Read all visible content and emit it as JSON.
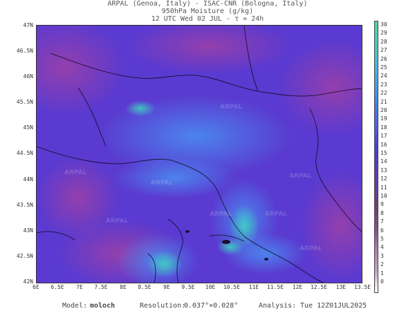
{
  "title": {
    "line1": "ARPAL (Genoa, Italy)  -  ISAC-CNR (Bologna, Italy)",
    "line2": "950hPa Moisture (g/kg)",
    "line3": "12 UTC Wed 02 JUL  -  τ = 24h"
  },
  "axes": {
    "lat_labels": [
      "47N",
      "46.5N",
      "46N",
      "45.5N",
      "45N",
      "44.5N",
      "44N",
      "43.5N",
      "43N",
      "42.5N",
      "42N"
    ],
    "lon_labels": [
      "6E",
      "6.5E",
      "7E",
      "7.5E",
      "8E",
      "8.5E",
      "9E",
      "9.5E",
      "10E",
      "10.5E",
      "11E",
      "11.5E",
      "12E",
      "12.5E",
      "13E",
      "13.5E"
    ],
    "lat_range": [
      42,
      47
    ],
    "lon_range": [
      6,
      13.5
    ]
  },
  "colorbar": {
    "labels": [
      "30",
      "29",
      "28",
      "27",
      "26",
      "25",
      "24",
      "23",
      "22",
      "21",
      "20",
      "19",
      "18",
      "17",
      "16",
      "15",
      "14",
      "13",
      "12",
      "11",
      "10",
      "9",
      "8",
      "7",
      "6",
      "5",
      "4",
      "3",
      "2",
      "1",
      "0"
    ],
    "unit": "g/kg",
    "colors": [
      "#ffffff",
      "#c6a3c6",
      "#b37cb3",
      "#8f4f8f",
      "#7a3a7a",
      "#6a3aa3",
      "#5a3ac8",
      "#4a40e0",
      "#4a60f0",
      "#4080f0",
      "#40a0f0",
      "#40c0e0",
      "#40d0c0",
      "#40e0a0"
    ]
  },
  "watermark": "ARPAL",
  "footer": {
    "model_label": "Model:",
    "model_value": "moloch",
    "resolution_label": "Resolution:",
    "resolution_value": "0.037°×0.028°",
    "analysis_label": "Analysis:",
    "analysis_value": "Tue 12Z01JUL2025"
  }
}
